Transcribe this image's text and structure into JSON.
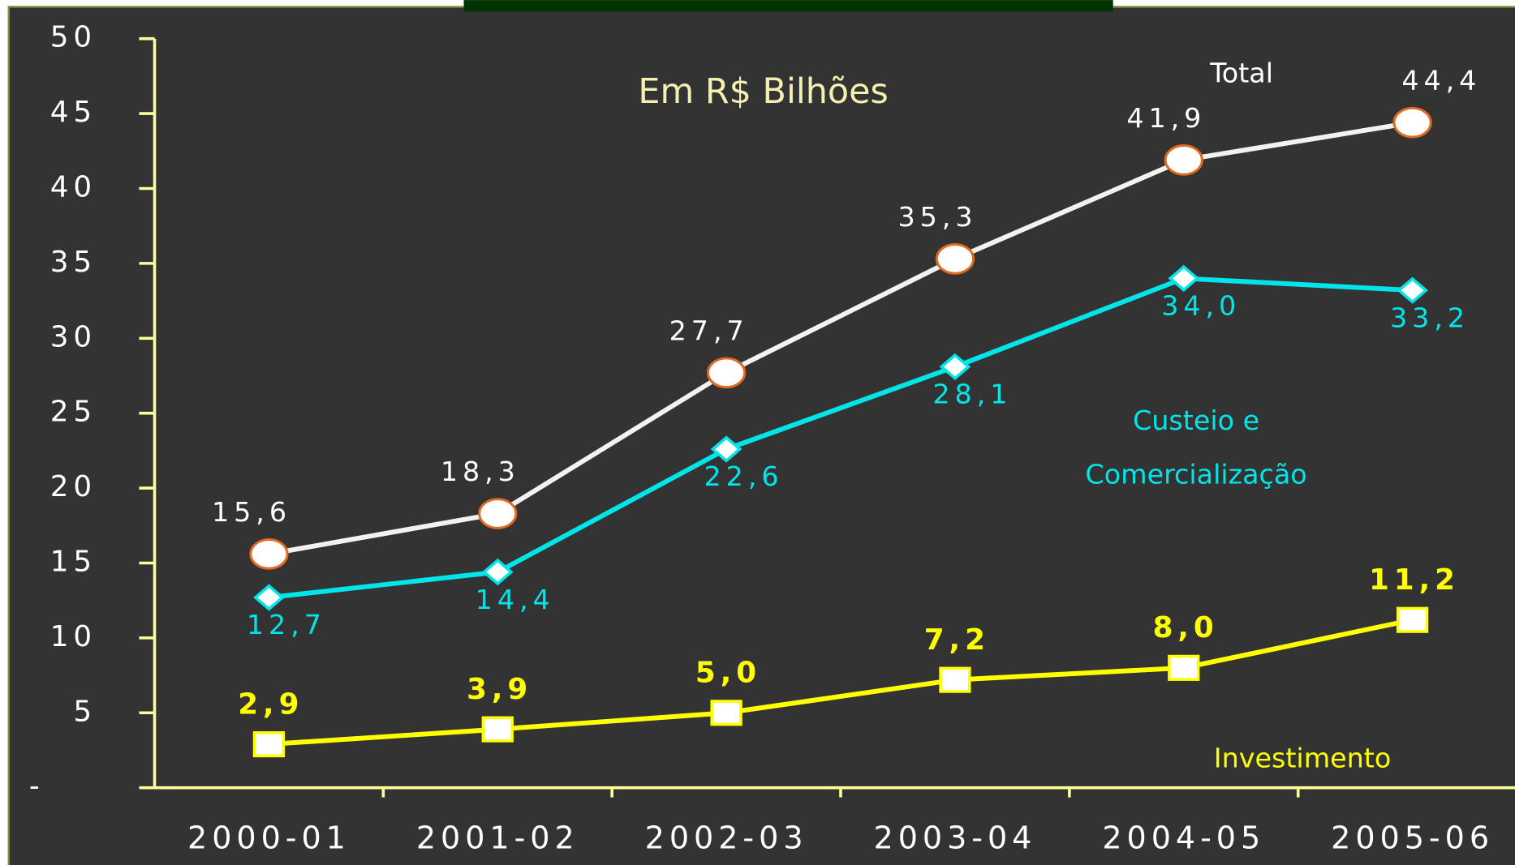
{
  "chart_data": {
    "type": "line",
    "subtitle": "Em R$ Bilhões",
    "categories": [
      "2000-01",
      "2001-02",
      "2002-03",
      "2003-04",
      "2004-05",
      "2005-06"
    ],
    "series": [
      {
        "name": "Total",
        "color": "#f2f2f2",
        "marker": "circle",
        "marker_edge": "#e06a20",
        "values": [
          15.6,
          18.3,
          27.7,
          35.3,
          41.9,
          44.4
        ],
        "value_labels": [
          "15,6",
          "18,3",
          "27,7",
          "35,3",
          "41,9",
          "44,4"
        ]
      },
      {
        "name": "Custeio e Comercialização",
        "color": "#00e5e8",
        "marker": "diamond",
        "marker_edge": "#00e5e8",
        "values": [
          12.7,
          14.4,
          22.6,
          28.1,
          34.0,
          33.2
        ],
        "value_labels": [
          "12,7",
          "14,4",
          "22,6",
          "28,1",
          "34,0",
          "33,2"
        ]
      },
      {
        "name": "Investimento",
        "color": "#ffff00",
        "marker": "square",
        "marker_edge": "#ffff00",
        "values": [
          2.9,
          3.9,
          5.0,
          7.2,
          8.0,
          11.2
        ],
        "value_labels": [
          "2,9",
          "3,9",
          "5,0",
          "7,2",
          "8,0",
          "11,2"
        ]
      }
    ],
    "ylim": [
      0,
      50
    ],
    "yticks": [
      {
        "value": 0,
        "label": "-"
      },
      5,
      10,
      15,
      20,
      25,
      30,
      35,
      40,
      45,
      50
    ],
    "grid": false
  }
}
